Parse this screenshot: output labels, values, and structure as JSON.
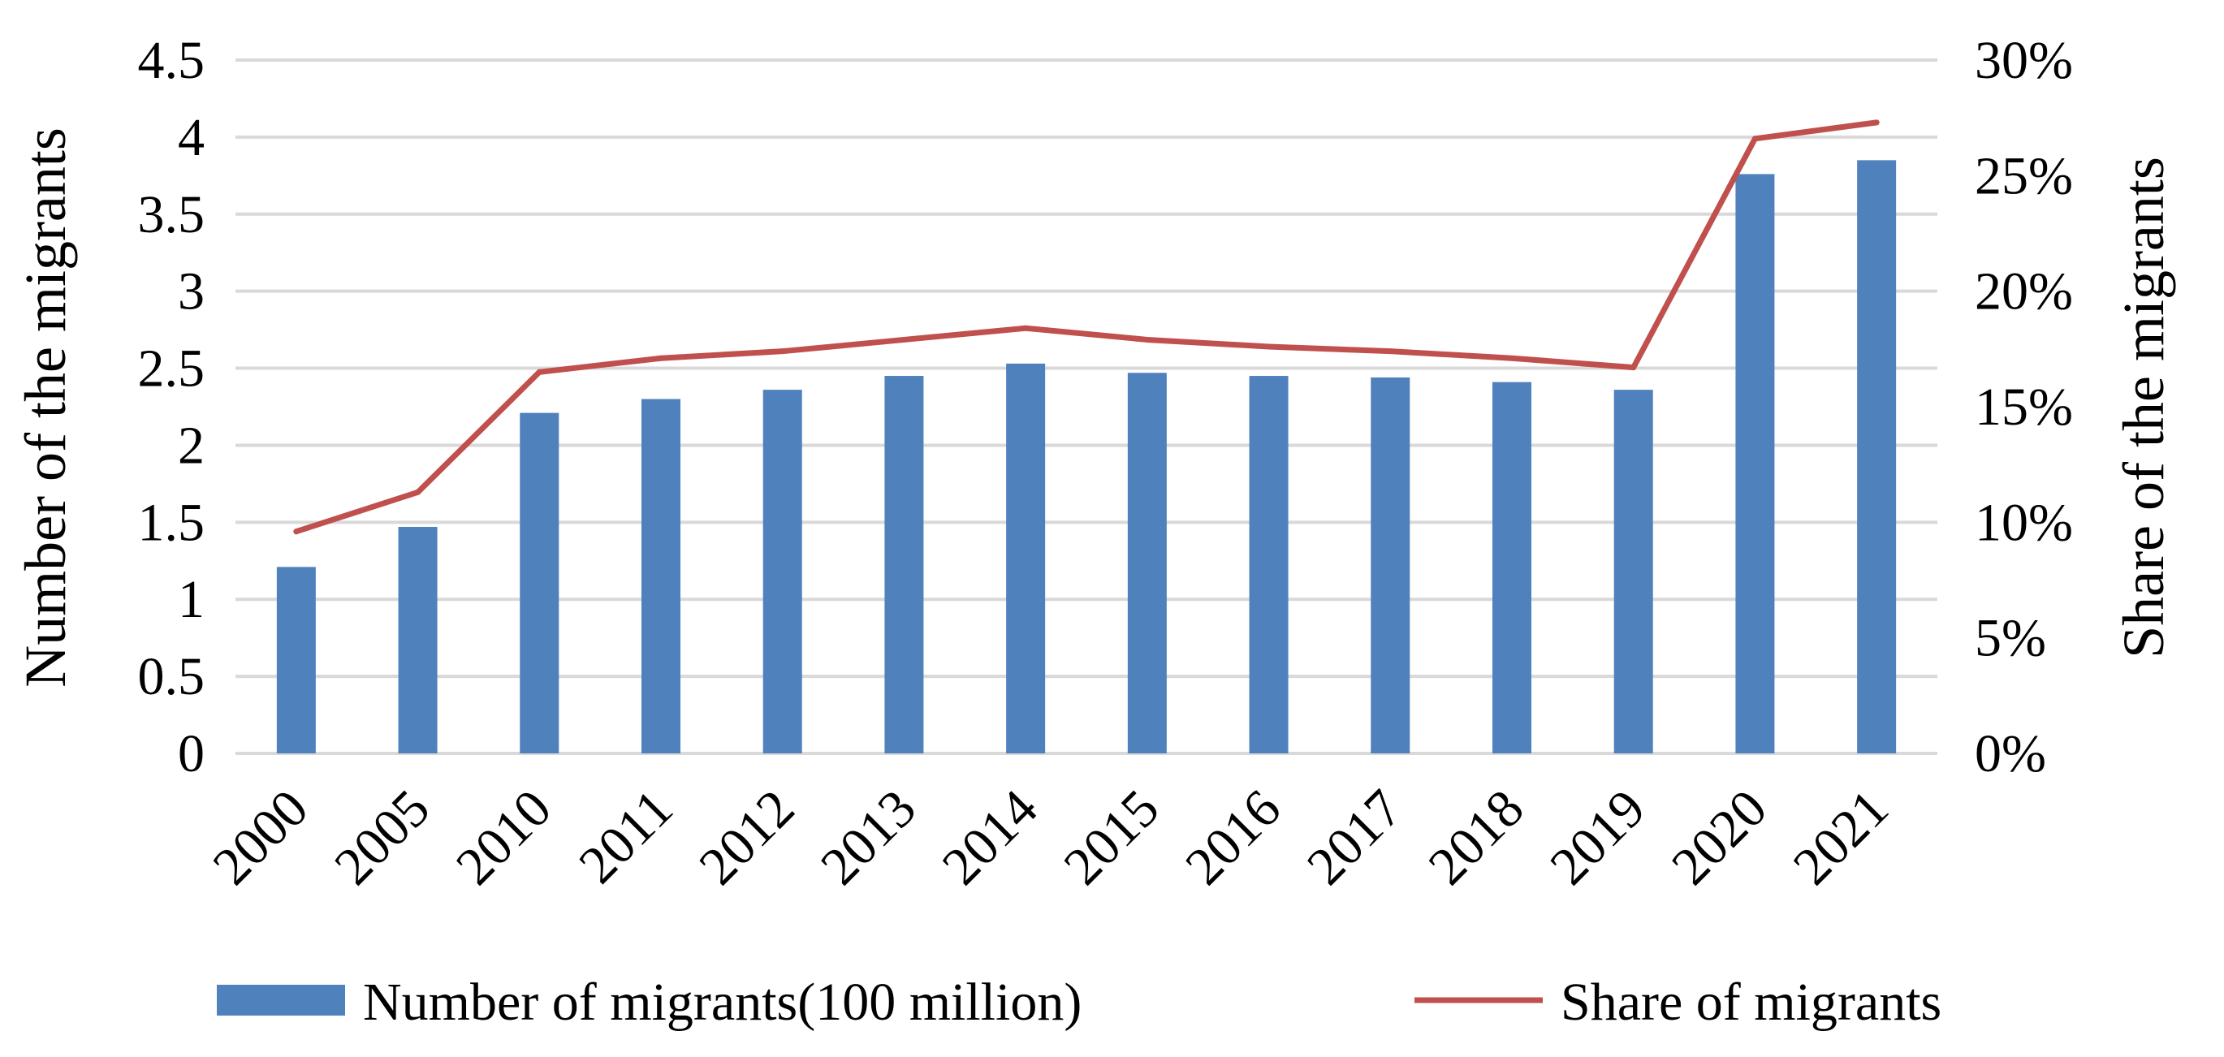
{
  "chart_data": {
    "type": "bar+line",
    "categories": [
      "2000",
      "2005",
      "2010",
      "2011",
      "2012",
      "2013",
      "2014",
      "2015",
      "2016",
      "2017",
      "2018",
      "2019",
      "2020",
      "2021"
    ],
    "series": [
      {
        "name": "Number of migrants(100 million)",
        "kind": "bar",
        "axis": "left",
        "color": "#4F81BD",
        "values": [
          1.21,
          1.47,
          2.21,
          2.3,
          2.36,
          2.45,
          2.53,
          2.47,
          2.45,
          2.44,
          2.41,
          2.36,
          3.76,
          3.85
        ]
      },
      {
        "name": "Share of migrants",
        "kind": "line",
        "axis": "right",
        "color": "#C0504D",
        "values": [
          9.6,
          11.3,
          16.5,
          17.1,
          17.4,
          17.9,
          18.4,
          17.9,
          17.6,
          17.4,
          17.1,
          16.7,
          26.6,
          27.3
        ]
      }
    ],
    "ylabel": "Number of the migrants",
    "y2label": "Share of the migrants",
    "ylim": [
      0,
      4.5
    ],
    "y2lim": [
      0,
      30
    ],
    "yticks": [
      "0",
      "0.5",
      "1",
      "1.5",
      "2",
      "2.5",
      "3",
      "3.5",
      "4",
      "4.5"
    ],
    "y2ticks": [
      "0%",
      "5%",
      "10%",
      "15%",
      "20%",
      "25%",
      "30%"
    ],
    "grid": true,
    "legend_position": "bottom",
    "gridline_color": "#D9D9D9"
  }
}
